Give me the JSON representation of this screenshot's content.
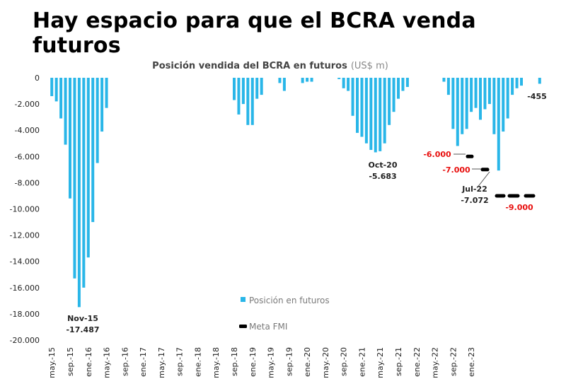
{
  "headline": "Hay espacio para que el BCRA venda futuros",
  "chart_data": {
    "type": "bar",
    "title": "Posición vendida del BCRA en futuros",
    "title_unit": "(US$ m)",
    "ylim": [
      -20000,
      0
    ],
    "y_ticks": [
      0,
      -2000,
      -4000,
      -6000,
      -8000,
      -10000,
      -12000,
      -14000,
      -16000,
      -18000,
      -20000
    ],
    "y_tick_labels": [
      "0",
      "-2.000",
      "-4.000",
      "-6.000",
      "-8.000",
      "-10.000",
      "-12.000",
      "-14.000",
      "-16.000",
      "-18.000",
      "-20.000"
    ],
    "x_tick_labels": [
      "may.-15",
      "sep.-15",
      "ene.-16",
      "may.-16",
      "sep.-16",
      "ene.-17",
      "may.-17",
      "sep.-17",
      "ene.-18",
      "may.-18",
      "sep.-18",
      "ene.-19",
      "may.-19",
      "sep.-19",
      "ene.-20",
      "may.-20",
      "sep.-20",
      "ene.-21",
      "may.-21",
      "sep.-21",
      "ene.-22",
      "may.-22",
      "sep.-22",
      "ene.-23"
    ],
    "series": [
      {
        "name": "Posición en futuros",
        "color": "#29b6e8",
        "values": [
          -1400,
          -1800,
          -3100,
          -5100,
          -9200,
          -15300,
          -17487,
          -16000,
          -13700,
          -11000,
          -6500,
          -4100,
          -2300,
          0,
          0,
          0,
          0,
          0,
          0,
          0,
          0,
          0,
          0,
          0,
          0,
          0,
          0,
          0,
          0,
          0,
          0,
          0,
          0,
          0,
          0,
          0,
          0,
          0,
          0,
          0,
          -1700,
          -2800,
          -2000,
          -3600,
          -3600,
          -1600,
          -1300,
          0,
          0,
          0,
          -400,
          -1000,
          0,
          0,
          0,
          -400,
          -300,
          -300,
          0,
          0,
          0,
          0,
          0,
          -100,
          -800,
          -1000,
          -2900,
          -4200,
          -4500,
          -5000,
          -5500,
          -5683,
          -5600,
          -5000,
          -3600,
          -2600,
          -1600,
          -1000,
          -700,
          0,
          0,
          0,
          0,
          0,
          0,
          0,
          -300,
          -1300,
          -3900,
          -5200,
          -4300,
          -3900,
          -2600,
          -2300,
          -3200,
          -2400,
          -2000,
          -4300,
          -7072,
          -4100,
          -3100,
          -1300,
          -800,
          -600,
          0,
          0,
          0,
          -455
        ]
      },
      {
        "name": "Meta FMI",
        "color": "#000000",
        "values": [
          -6000,
          -7000,
          -9000
        ]
      }
    ],
    "annotations": [
      {
        "id": "nov15",
        "date": "Nov-15",
        "value": "-17.487"
      },
      {
        "id": "oct20",
        "date": "Oct-20",
        "value": "-5.683"
      },
      {
        "id": "jul22",
        "date": "Jul-22",
        "value": "-7.072"
      },
      {
        "id": "meta1",
        "value": "-6.000"
      },
      {
        "id": "meta2",
        "value": "-7.000"
      },
      {
        "id": "meta3",
        "value": "-9.000"
      },
      {
        "id": "last",
        "value": "-455"
      }
    ],
    "legend": {
      "position": "bottom-center"
    },
    "grid": false
  }
}
